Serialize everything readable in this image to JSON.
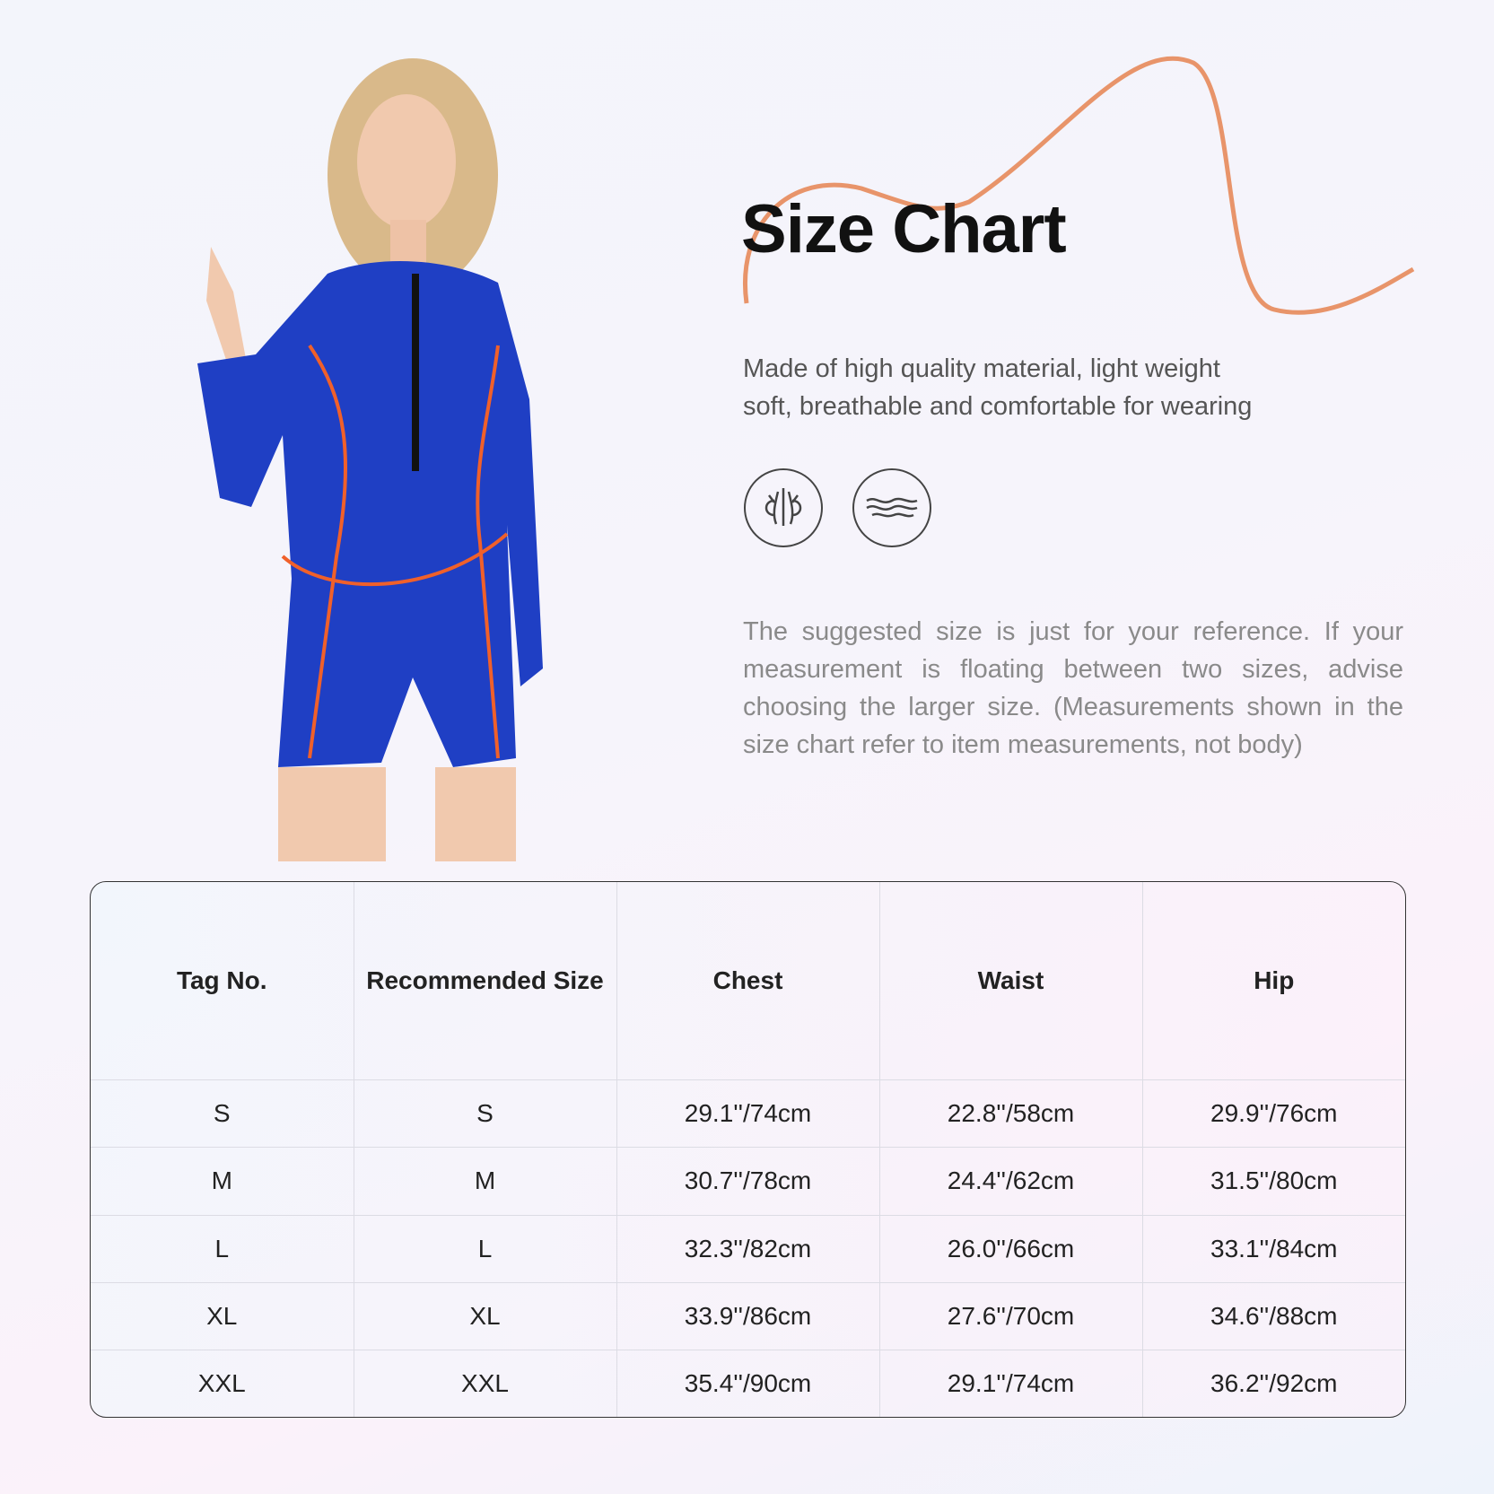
{
  "title": "Size Chart",
  "description": [
    "Made of high quality material, light weight",
    "soft, breathable and comfortable for wearing"
  ],
  "icons": [
    "breathable-icon",
    "soft-wave-icon"
  ],
  "note": "The suggested size is just for your reference. If your measurement is floating between two sizes, advise choosing the larger size. (Measurements shown in the size chart refer to item measurements, not body)",
  "colors": {
    "accent_curve": "#e8946a",
    "suit_blue": "#1f3fc4",
    "piping": "#f0602a"
  },
  "table": {
    "headers": [
      "Tag No.",
      "Recommended Size",
      "Chest",
      "Waist",
      "Hip"
    ],
    "rows": [
      [
        "S",
        "S",
        "29.1''/74cm",
        "22.8''/58cm",
        "29.9''/76cm"
      ],
      [
        "M",
        "M",
        "30.7''/78cm",
        "24.4''/62cm",
        "31.5''/80cm"
      ],
      [
        "L",
        "L",
        "32.3''/82cm",
        "26.0''/66cm",
        "33.1''/84cm"
      ],
      [
        "XL",
        "XL",
        "33.9''/86cm",
        "27.6''/70cm",
        "34.6''/88cm"
      ],
      [
        "XXL",
        "XXL",
        "35.4''/90cm",
        "29.1''/74cm",
        "36.2''/92cm"
      ]
    ]
  }
}
